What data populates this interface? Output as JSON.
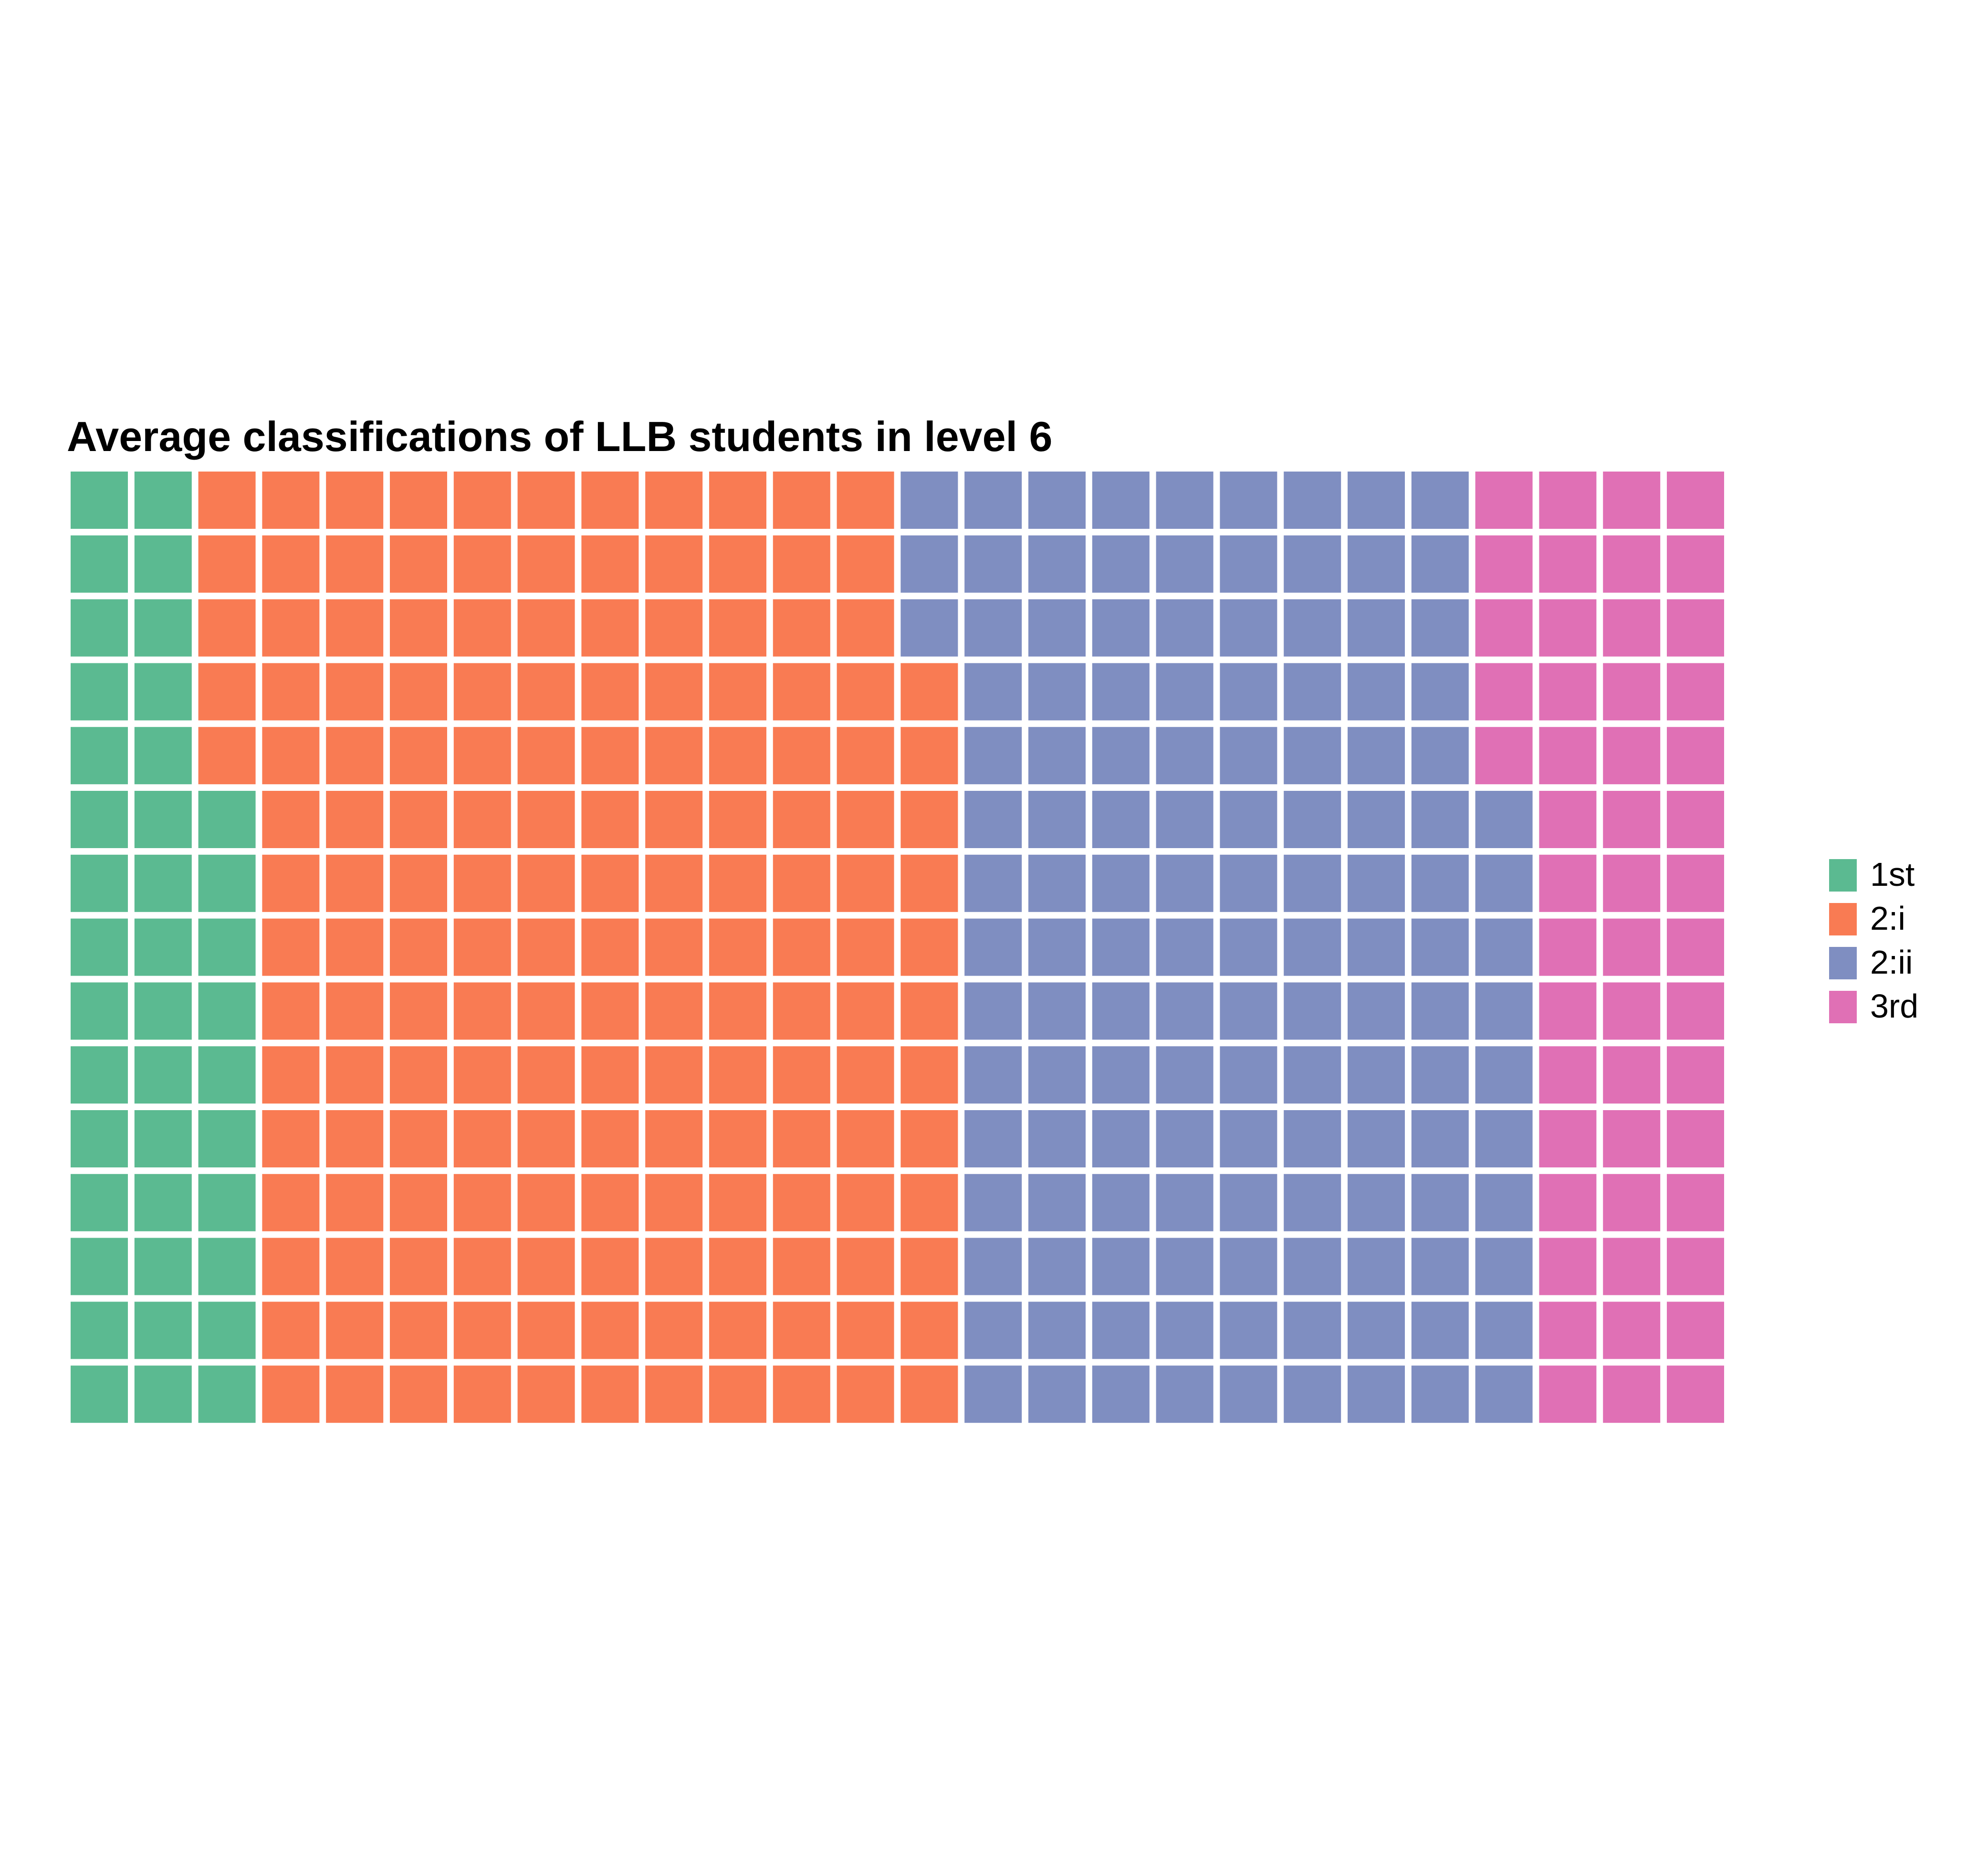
{
  "chart_data": {
    "type": "waffle",
    "title": "Average classifications of LLB students in level 6",
    "rows": 15,
    "fill_order": "column-major, bottom-to-top",
    "series": [
      {
        "name": "1st",
        "value": 40,
        "color": "#5BBA91"
      },
      {
        "name": "2:i",
        "value": 167,
        "color": "#F97B53"
      },
      {
        "name": "2:ii",
        "value": 133,
        "color": "#7F8EC1"
      },
      {
        "name": "3rd",
        "value": 50,
        "color": "#E070B5"
      }
    ],
    "legend": {
      "position": "right"
    }
  }
}
